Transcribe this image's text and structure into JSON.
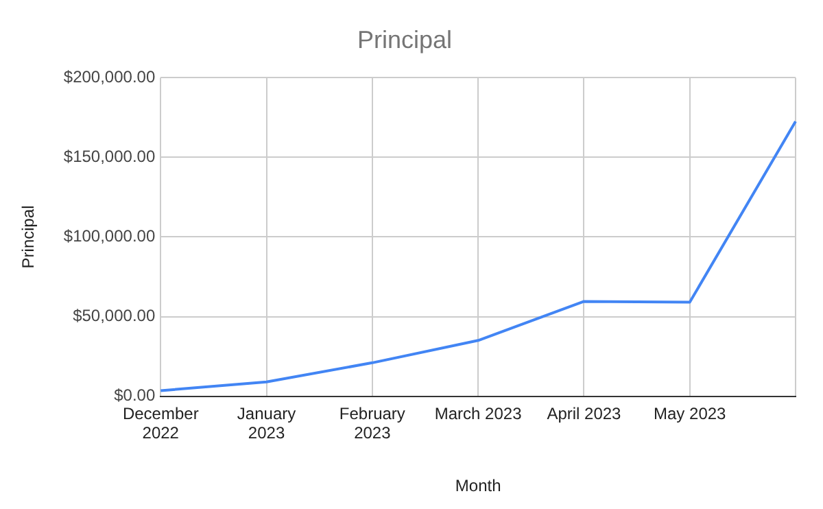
{
  "chart_data": {
    "type": "line",
    "title": "Principal",
    "xlabel": "Month",
    "ylabel": "Principal",
    "categories": [
      "December 2022",
      "January 2023",
      "February 2023",
      "March 2023",
      "April 2023",
      "May 2023",
      null
    ],
    "series": [
      {
        "color": "#4285f4",
        "values": [
          3500,
          9000,
          21000,
          35000,
          59500,
          59000,
          172500
        ]
      }
    ],
    "ylim": [
      0,
      200000
    ],
    "yticks": [
      {
        "value": 0,
        "label": "$0.00"
      },
      {
        "value": 50000,
        "label": "$50,000.00"
      },
      {
        "value": 100000,
        "label": "$100,000.00"
      },
      {
        "value": 150000,
        "label": "$150,000.00"
      },
      {
        "value": 200000,
        "label": "$200,000.00"
      }
    ],
    "grid": true,
    "legend": false,
    "marker": "none",
    "line_style": "solid"
  }
}
